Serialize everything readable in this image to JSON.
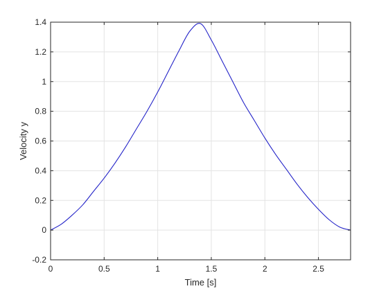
{
  "chart_data": {
    "type": "line",
    "title": "",
    "xlabel": "Time [s]",
    "ylabel": "Velocity y",
    "xlim": [
      0,
      2.8
    ],
    "ylim": [
      -0.2,
      1.4
    ],
    "xticks": [
      0,
      0.5,
      1,
      1.5,
      2,
      2.5
    ],
    "xtick_labels": [
      "0",
      "0.5",
      "1",
      "1.5",
      "2",
      "2.5"
    ],
    "yticks": [
      -0.2,
      0,
      0.2,
      0.4,
      0.6,
      0.8,
      1,
      1.2,
      1.4
    ],
    "ytick_labels": [
      "-0.2",
      "0",
      "0.2",
      "0.4",
      "0.6",
      "0.8",
      "1",
      "1.2",
      "1.4"
    ],
    "grid": true,
    "series": [
      {
        "color": "#2323c8",
        "x": [
          0,
          0.1,
          0.2,
          0.3,
          0.4,
          0.5,
          0.6,
          0.7,
          0.8,
          0.9,
          1.0,
          1.1,
          1.2,
          1.3,
          1.4,
          1.5,
          1.6,
          1.7,
          1.8,
          1.9,
          2.0,
          2.1,
          2.2,
          2.3,
          2.4,
          2.5,
          2.6,
          2.7,
          2.8
        ],
        "y": [
          0,
          0.04,
          0.1,
          0.17,
          0.26,
          0.35,
          0.45,
          0.56,
          0.68,
          0.8,
          0.93,
          1.07,
          1.21,
          1.34,
          1.39,
          1.28,
          1.14,
          1.0,
          0.86,
          0.74,
          0.62,
          0.51,
          0.41,
          0.31,
          0.22,
          0.14,
          0.07,
          0.02,
          0
        ]
      }
    ]
  }
}
